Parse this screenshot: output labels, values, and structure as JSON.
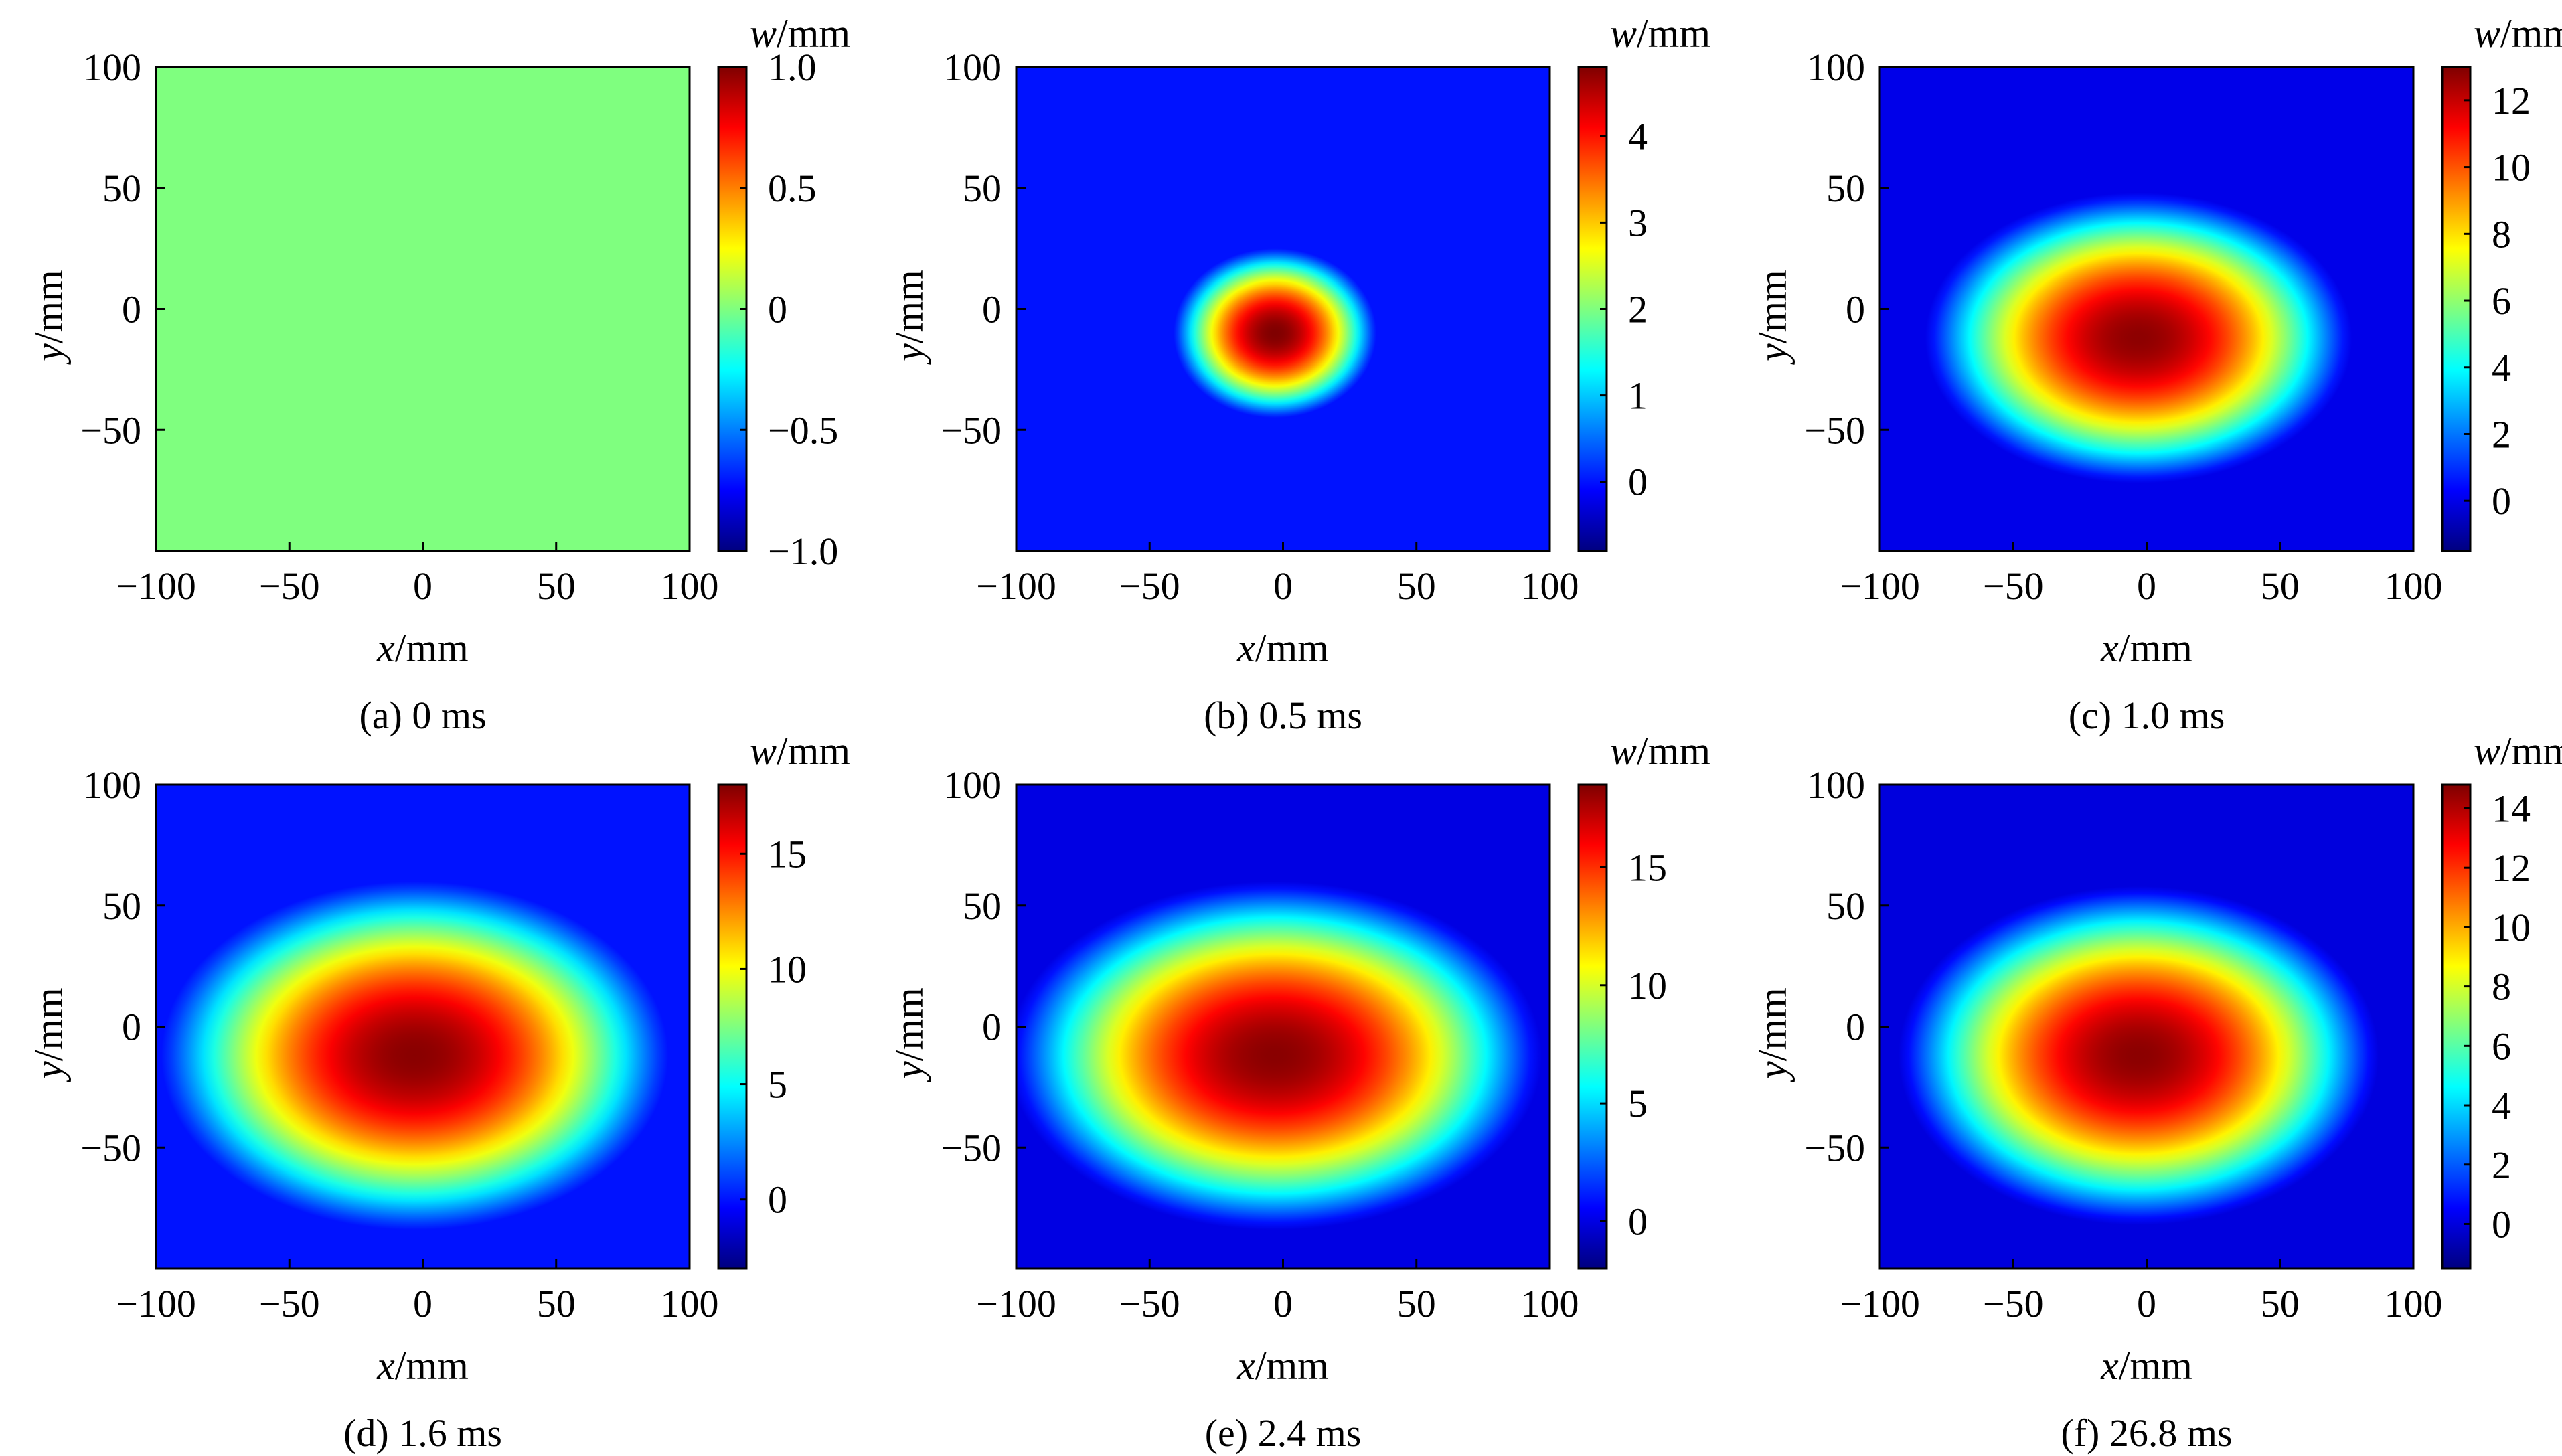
{
  "figure": {
    "panels": [
      {
        "caption": "(a) 0 ms",
        "xlabel": {
          "var": "x",
          "unit": "/mm"
        },
        "ylabel": {
          "var": "y",
          "unit": "/mm"
        },
        "colorbar_title": {
          "var": "w",
          "unit": "/mm"
        }
      },
      {
        "caption": "(b) 0.5 ms",
        "xlabel": {
          "var": "x",
          "unit": "/mm"
        },
        "ylabel": {
          "var": "y",
          "unit": "/mm"
        },
        "colorbar_title": {
          "var": "w",
          "unit": "/mm"
        }
      },
      {
        "caption": "(c) 1.0 ms",
        "xlabel": {
          "var": "x",
          "unit": "/mm"
        },
        "ylabel": {
          "var": "y",
          "unit": "/mm"
        },
        "colorbar_title": {
          "var": "w",
          "unit": "/mm"
        }
      },
      {
        "caption": "(d) 1.6 ms",
        "xlabel": {
          "var": "x",
          "unit": "/mm"
        },
        "ylabel": {
          "var": "y",
          "unit": "/mm"
        },
        "colorbar_title": {
          "var": "w",
          "unit": "/mm"
        }
      },
      {
        "caption": "(e) 2.4 ms",
        "xlabel": {
          "var": "x",
          "unit": "/mm"
        },
        "ylabel": {
          "var": "y",
          "unit": "/mm"
        },
        "colorbar_title": {
          "var": "w",
          "unit": "/mm"
        }
      },
      {
        "caption": "(f) 26.8 ms",
        "xlabel": {
          "var": "x",
          "unit": "/mm"
        },
        "ylabel": {
          "var": "y",
          "unit": "/mm"
        },
        "colorbar_title": {
          "var": "w",
          "unit": "/mm"
        }
      }
    ]
  },
  "chart_data": [
    {
      "type": "heatmap",
      "x_ticks": [
        -100,
        -50,
        0,
        50,
        100
      ],
      "y_ticks": [
        100,
        50,
        0,
        -50
      ],
      "xlim": [
        -100,
        100
      ],
      "ylim": [
        -100,
        100
      ],
      "colorbar": {
        "min": -1.0,
        "max": 1.0,
        "ticks": [
          "1.0",
          "0.5",
          "0",
          "-0.5",
          "-1.0"
        ],
        "tick_values": [
          1.0,
          0.5,
          0,
          -0.5,
          -1.0
        ]
      },
      "field": {
        "uniform": true,
        "value": 0
      },
      "colormap": "jet"
    },
    {
      "type": "heatmap",
      "x_ticks": [
        -100,
        -50,
        0,
        50,
        100
      ],
      "y_ticks": [
        100,
        50,
        0,
        -50
      ],
      "xlim": [
        -100,
        100
      ],
      "ylim": [
        -100,
        100
      ],
      "colorbar": {
        "min": -0.8,
        "max": 4.8,
        "ticks": [
          "4",
          "3",
          "2",
          "1",
          "0"
        ],
        "tick_values": [
          4,
          3,
          2,
          1,
          0
        ]
      },
      "field": {
        "center_x": -3,
        "center_y": -10,
        "peak": 4.8,
        "radius_x": 38,
        "radius_y": 35,
        "background": 0
      },
      "colormap": "jet"
    },
    {
      "type": "heatmap",
      "x_ticks": [
        -100,
        -50,
        0,
        50,
        100
      ],
      "y_ticks": [
        100,
        50,
        0,
        -50
      ],
      "xlim": [
        -100,
        100
      ],
      "ylim": [
        -100,
        100
      ],
      "colorbar": {
        "min": -1.5,
        "max": 13,
        "ticks": [
          "12",
          "10",
          "8",
          "6",
          "4",
          "2",
          "0"
        ],
        "tick_values": [
          12,
          10,
          8,
          6,
          4,
          2,
          0
        ]
      },
      "field": {
        "center_x": -3,
        "center_y": -12,
        "peak": 12.8,
        "radius_x": 80,
        "radius_y": 60,
        "background": 0
      },
      "colormap": "jet"
    },
    {
      "type": "heatmap",
      "x_ticks": [
        -100,
        -50,
        0,
        50,
        100
      ],
      "y_ticks": [
        100,
        50,
        0,
        -50
      ],
      "xlim": [
        -100,
        100
      ],
      "ylim": [
        -100,
        100
      ],
      "colorbar": {
        "min": -3,
        "max": 18,
        "ticks": [
          "15",
          "10",
          "5",
          "0"
        ],
        "tick_values": [
          15,
          10,
          5,
          0
        ]
      },
      "field": {
        "center_x": -3,
        "center_y": -12,
        "peak": 17.8,
        "radius_x": 95,
        "radius_y": 72,
        "background": 0
      },
      "colormap": "jet"
    },
    {
      "type": "heatmap",
      "x_ticks": [
        -100,
        -50,
        0,
        50,
        100
      ],
      "y_ticks": [
        100,
        50,
        0,
        -50
      ],
      "xlim": [
        -100,
        100
      ],
      "ylim": [
        -100,
        100
      ],
      "colorbar": {
        "min": -2,
        "max": 18.5,
        "ticks": [
          "15",
          "10",
          "5",
          "0"
        ],
        "tick_values": [
          15,
          10,
          5,
          0
        ]
      },
      "field": {
        "center_x": -3,
        "center_y": -12,
        "peak": 18.3,
        "radius_x": 100,
        "radius_y": 72,
        "background": 0
      },
      "colormap": "jet"
    },
    {
      "type": "heatmap",
      "x_ticks": [
        -100,
        -50,
        0,
        50,
        100
      ],
      "y_ticks": [
        100,
        50,
        0,
        -50
      ],
      "xlim": [
        -100,
        100
      ],
      "ylim": [
        -100,
        100
      ],
      "colorbar": {
        "min": -1.5,
        "max": 14.8,
        "ticks": [
          "14",
          "12",
          "10",
          "8",
          "6",
          "4",
          "2",
          "0"
        ],
        "tick_values": [
          14,
          12,
          10,
          8,
          6,
          4,
          2,
          0
        ]
      },
      "field": {
        "center_x": -3,
        "center_y": -12,
        "peak": 14.6,
        "radius_x": 90,
        "radius_y": 70,
        "background": 0
      },
      "colormap": "jet"
    }
  ]
}
